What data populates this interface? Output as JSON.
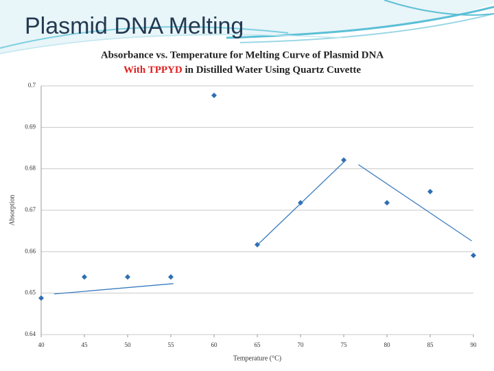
{
  "slide_title": "Plasmid DNA Melting",
  "chart_data": {
    "type": "scatter",
    "title": [
      "Absorbance vs. Temperature for Melting Curve of Plasmid DNA",
      "With TPPYD",
      "in Distilled Water Using Quartz Cuvette"
    ],
    "xlabel": "Temperature (°C)",
    "ylabel": "Absorption",
    "xlim": [
      40,
      90
    ],
    "xticks": [
      40,
      45,
      50,
      55,
      60,
      65,
      70,
      75,
      80,
      85,
      90
    ],
    "ylim": [
      0.64,
      0.7
    ],
    "yticks": [
      0.64,
      0.65,
      0.66,
      0.67,
      0.68,
      0.69,
      0.7
    ],
    "grid": true,
    "x": [
      40,
      45,
      50,
      55,
      60,
      65,
      70,
      75,
      80,
      85,
      90
    ],
    "values": [
      0.6488,
      0.6539,
      0.6539,
      0.6539,
      0.6977,
      0.6617,
      0.6718,
      0.6821,
      0.6718,
      0.6745,
      0.6591
    ],
    "color": "#2f6fb3",
    "series": [
      {
        "x": [
          41.5,
          55.3
        ],
        "values": [
          0.6498,
          0.6523
        ],
        "color": "#3a7bbf"
      },
      {
        "x": [
          65,
          75
        ],
        "values": [
          0.6616,
          0.6816
        ],
        "color": "#3a7bbf"
      },
      {
        "x": [
          76.7,
          89.8
        ],
        "values": [
          0.681,
          0.6626
        ],
        "color": "#3a7bbf"
      }
    ]
  }
}
